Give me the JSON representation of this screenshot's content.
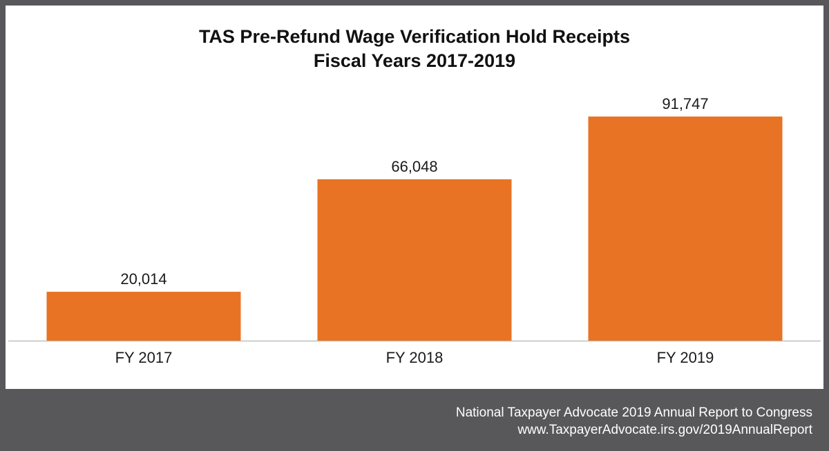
{
  "chart_data": {
    "type": "bar",
    "title": "TAS Pre-Refund Wage Verification Hold Receipts",
    "subtitle": "Fiscal Years 2017-2019",
    "categories": [
      "FY 2017",
      "FY 2018",
      "FY 2019"
    ],
    "values": [
      20014,
      66048,
      91747
    ],
    "data_labels": [
      "20,014",
      "66,048",
      "91,747"
    ],
    "xlabel": "",
    "ylabel": "",
    "ylim": [
      0,
      100000
    ],
    "grid": false,
    "legend": "none",
    "colors": {
      "bar": "#e87324",
      "axis": "#bfbfbf",
      "text": "#1a1a1a"
    }
  },
  "footer": {
    "line1": "National Taxpayer Advocate 2019 Annual Report to Congress",
    "line2": "www.TaxpayerAdvocate.irs.gov/2019AnnualReport"
  },
  "colors": {
    "frame": "#58585a",
    "panel": "#ffffff"
  }
}
